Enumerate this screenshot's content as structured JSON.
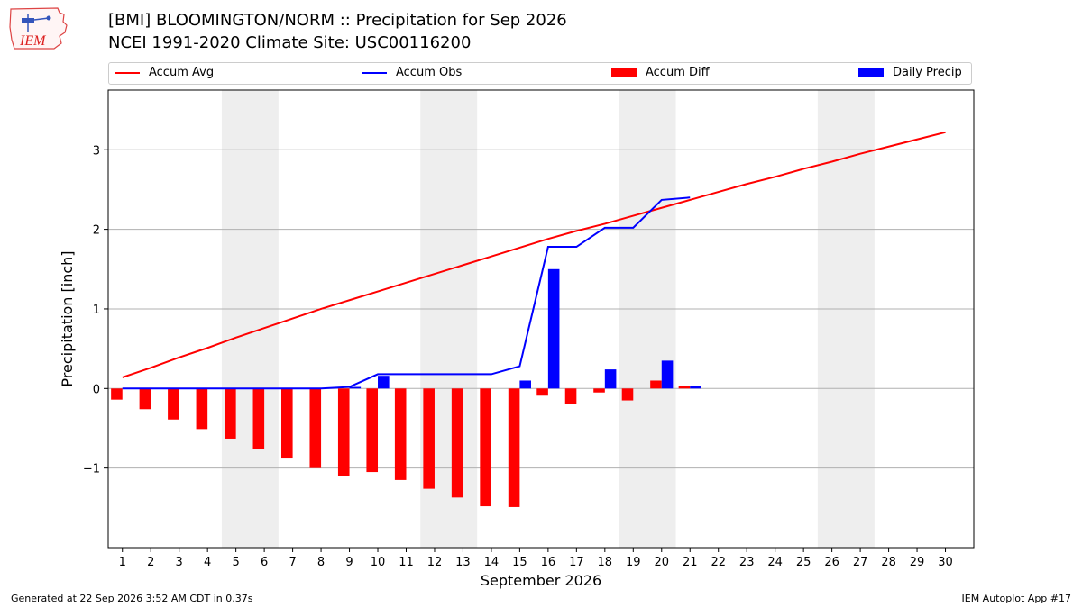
{
  "header": {
    "title_line1": "[BMI] BLOOMINGTON/NORM :: Precipitation for Sep 2026",
    "title_line2": "NCEI 1991-2020 Climate Site: USC00116200",
    "logo_text": "IEM"
  },
  "footer": {
    "left": "Generated at 22 Sep 2026 3:52 AM CDT in 0.37s",
    "right": "IEM Autoplot App #17"
  },
  "colors": {
    "accum_avg": "#ff0000",
    "accum_obs": "#0000ff",
    "accum_diff": "#ff0000",
    "daily_precip": "#0000ff",
    "weekend_shade": "#eeeeee",
    "grid": "#b0b0b0"
  },
  "chart_data": {
    "type": "bar",
    "title": "[BMI] BLOOMINGTON/NORM :: Precipitation for Sep 2026",
    "subtitle": "NCEI 1991-2020 Climate Site: USC00116200",
    "xlabel": "September 2026",
    "ylabel": "Precipitation [inch]",
    "xlim": [
      0.5,
      31
    ],
    "ylim": [
      -2.0,
      3.75
    ],
    "yticks": [
      -1,
      0,
      1,
      2,
      3
    ],
    "ytick_labels": [
      "−1",
      "0",
      "1",
      "2",
      "3"
    ],
    "x": [
      1,
      2,
      3,
      4,
      5,
      6,
      7,
      8,
      9,
      10,
      11,
      12,
      13,
      14,
      15,
      16,
      17,
      18,
      19,
      20,
      21,
      22,
      23,
      24,
      25,
      26,
      27,
      28,
      29,
      30
    ],
    "xtick_labels": [
      "1",
      "2",
      "3",
      "4",
      "5",
      "6",
      "7",
      "8",
      "9",
      "10",
      "11",
      "12",
      "13",
      "14",
      "15",
      "16",
      "17",
      "18",
      "19",
      "20",
      "21",
      "22",
      "23",
      "24",
      "25",
      "26",
      "27",
      "28",
      "29",
      "30"
    ],
    "weekend_bands": [
      [
        4.5,
        6.5
      ],
      [
        11.5,
        13.5
      ],
      [
        18.5,
        20.5
      ],
      [
        25.5,
        27.5
      ]
    ],
    "grid": "horizontal",
    "legend_position": "top",
    "series": [
      {
        "name": "Accum Avg",
        "kind": "line",
        "x": [
          1,
          2,
          3,
          4,
          5,
          6,
          7,
          8,
          9,
          10,
          11,
          12,
          13,
          14,
          15,
          16,
          17,
          18,
          19,
          20,
          21,
          22,
          23,
          24,
          25,
          26,
          27,
          28,
          29,
          30
        ],
        "values": [
          0.14,
          0.26,
          0.39,
          0.51,
          0.64,
          0.76,
          0.88,
          1.0,
          1.11,
          1.22,
          1.33,
          1.44,
          1.55,
          1.66,
          1.77,
          1.88,
          1.98,
          2.07,
          2.17,
          2.27,
          2.37,
          2.47,
          2.57,
          2.66,
          2.76,
          2.85,
          2.95,
          3.04,
          3.13,
          3.22
        ]
      },
      {
        "name": "Accum Obs",
        "kind": "line",
        "x": [
          1,
          2,
          3,
          4,
          5,
          6,
          7,
          8,
          9,
          10,
          11,
          12,
          13,
          14,
          15,
          16,
          17,
          18,
          19,
          20,
          21
        ],
        "values": [
          0.0,
          0.0,
          0.0,
          0.0,
          0.0,
          0.0,
          0.0,
          0.0,
          0.02,
          0.18,
          0.18,
          0.18,
          0.18,
          0.18,
          0.28,
          1.78,
          1.78,
          2.02,
          2.02,
          2.37,
          2.4
        ]
      },
      {
        "name": "Accum Diff",
        "kind": "bar",
        "x": [
          1,
          2,
          3,
          4,
          5,
          6,
          7,
          8,
          9,
          10,
          11,
          12,
          13,
          14,
          15,
          16,
          17,
          18,
          19,
          20,
          21
        ],
        "values": [
          -0.14,
          -0.26,
          -0.39,
          -0.51,
          -0.63,
          -0.76,
          -0.88,
          -1.0,
          -1.1,
          -1.05,
          -1.15,
          -1.26,
          -1.37,
          -1.48,
          -1.49,
          -0.09,
          -0.2,
          -0.05,
          -0.15,
          0.1,
          0.03
        ]
      },
      {
        "name": "Daily Precip",
        "kind": "bar",
        "x": [
          9,
          10,
          15,
          16,
          18,
          20,
          21
        ],
        "values": [
          0.02,
          0.16,
          0.1,
          1.5,
          0.24,
          0.35,
          0.03
        ]
      }
    ]
  }
}
